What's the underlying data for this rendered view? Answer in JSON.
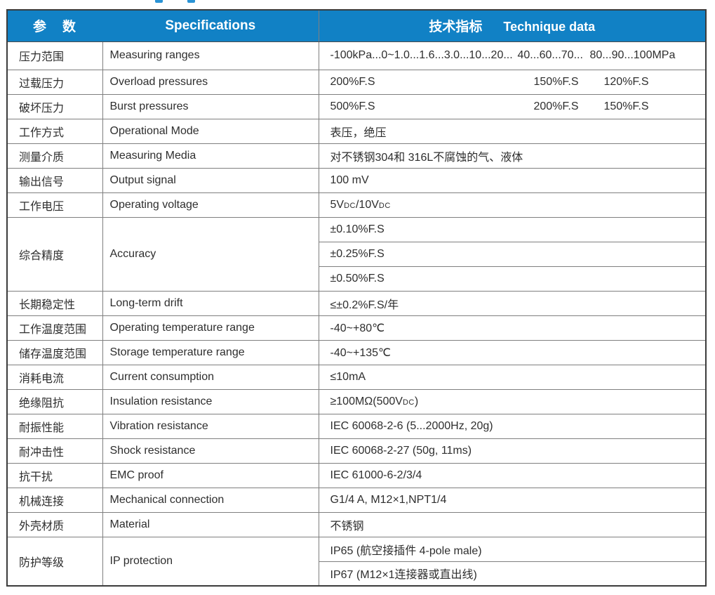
{
  "colors": {
    "header_bg": "#1181c5",
    "header_text": "#ffffff",
    "body_text": "#2e2e2e",
    "outer_border": "#3c3c3c",
    "inner_border": "#7f7f7f",
    "title_fragment_blue": "#2a93d5"
  },
  "table": {
    "header": {
      "param_zh": "参　数",
      "spec_en": "Specifications",
      "tech_zh": "技术指标",
      "tech_en": "Technique data"
    },
    "rows": [
      {
        "zh": "压力范围",
        "en": "Measuring ranges",
        "parts": [
          "-100kPa...0~1.0...1.6...3.0...10...20...",
          "40...60...70...",
          "80...90...100MPa"
        ]
      },
      {
        "zh": "过载压力",
        "en": "Overload pressures",
        "parts": [
          "200%F.S",
          "150%F.S",
          "120%F.S"
        ]
      },
      {
        "zh": "破坏压力",
        "en": "Burst pressures",
        "parts": [
          "500%F.S",
          "200%F.S",
          "150%F.S"
        ]
      },
      {
        "zh": "工作方式",
        "en": "Operational Mode",
        "value": "表压，绝压"
      },
      {
        "zh": "测量介质",
        "en": "Measuring Media",
        "value": "对不锈钢304和 316L不腐蚀的气、液体"
      },
      {
        "zh": "输出信号",
        "en": "Output signal",
        "value": "100 mV"
      },
      {
        "zh": "工作电压",
        "en": "Operating voltage",
        "value": "5VDC/10VDC"
      },
      {
        "zh": "综合精度",
        "en": "Accuracy",
        "subvalues": [
          "±0.10%F.S",
          "±0.25%F.S",
          "±0.50%F.S"
        ]
      },
      {
        "zh": "长期稳定性",
        "en": "Long-term drift",
        "value": "≤±0.2%F.S/年"
      },
      {
        "zh": "工作温度范围",
        "en": "Operating temperature range",
        "value": "-40~+80℃"
      },
      {
        "zh": "储存温度范围",
        "en": "Storage temperature range",
        "value": "-40~+135℃"
      },
      {
        "zh": "消耗电流",
        "en": "Current consumption",
        "value": "≤10mA"
      },
      {
        "zh": "绝缘阻抗",
        "en": "Insulation resistance",
        "value": "≥100MΩ(500VDC)"
      },
      {
        "zh": "耐振性能",
        "en": "Vibration resistance",
        "value": "IEC 60068-2-6 (5...2000Hz, 20g)"
      },
      {
        "zh": "耐冲击性",
        "en": "Shock resistance",
        "value": "IEC 60068-2-27 (50g, 11ms)"
      },
      {
        "zh": "抗干扰",
        "en": "EMC proof",
        "value": "IEC 61000-6-2/3/4"
      },
      {
        "zh": "机械连接",
        "en": "Mechanical connection",
        "value": "G1/4 A, M12×1,NPT1/4"
      },
      {
        "zh": "外壳材质",
        "en": "Material",
        "value": "不锈钢"
      },
      {
        "zh": "防护等级",
        "en": "IP protection",
        "subvalues": [
          "IP65 (航空接插件 4-pole male)",
          "IP67 (M12×1连接器或直出线)"
        ]
      }
    ]
  }
}
